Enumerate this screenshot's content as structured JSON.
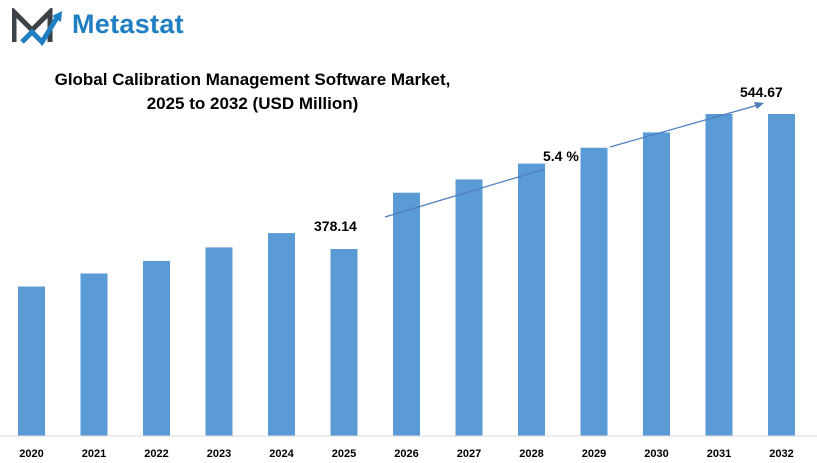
{
  "brand": {
    "name": "Metastat"
  },
  "colors": {
    "bar": "#5b9bd5",
    "trend": "#4a7ebf",
    "brand": "#1f7fc2",
    "logo_dark": "#3d4148"
  },
  "chart_data": {
    "type": "bar",
    "title_line1": "Global Calibration Management Software Market,",
    "title_line2": "2025 to 2032 (USD Million)",
    "categories": [
      "2020",
      "2021",
      "2022",
      "2023",
      "2024",
      "2025",
      "2026",
      "2027",
      "2028",
      "2029",
      "2030",
      "2031",
      "2032"
    ],
    "values": [
      292.5,
      318.0,
      342.5,
      369.0,
      397.0,
      378.14,
      476.0,
      502.0,
      533.0,
      564.0,
      594.0,
      630.0,
      544.67
    ],
    "data_labels": {
      "first": "378.14",
      "last": "544.67"
    },
    "cagr_label": "5.4 %",
    "xlabel": "",
    "ylabel": "",
    "grid": false,
    "legend": "none"
  }
}
